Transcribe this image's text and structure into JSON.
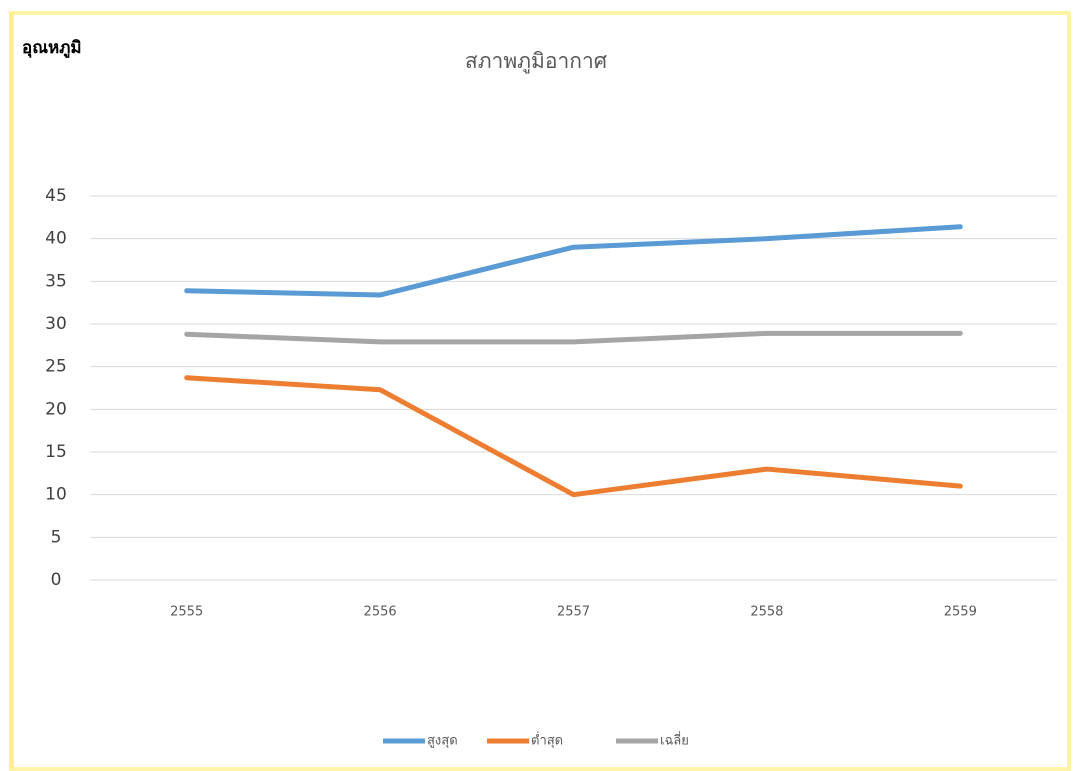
{
  "chart_data": {
    "type": "line",
    "title": "สภาพภูมิอากาศ",
    "ylabel": "อุณหภูมิ",
    "categories": [
      "2555",
      "2556",
      "2557",
      "2558",
      "2559"
    ],
    "series": [
      {
        "name": "สูงสุด",
        "color": "#5b9bd5",
        "values": [
          33.9,
          33.4,
          39,
          40,
          41.4
        ]
      },
      {
        "name": "ต่ำสุด",
        "color": "#ed7d31",
        "values": [
          23.7,
          22.3,
          10,
          13,
          11
        ]
      },
      {
        "name": "เฉลี่ย",
        "color": "#a5a5a5",
        "values": [
          28.8,
          27.9,
          27.9,
          28.9,
          28.9
        ]
      }
    ],
    "ylim": [
      0,
      45
    ],
    "yticks": [
      0,
      5,
      10,
      15,
      20,
      25,
      30,
      35,
      40,
      45
    ],
    "grid": true,
    "legend": "bottom"
  }
}
